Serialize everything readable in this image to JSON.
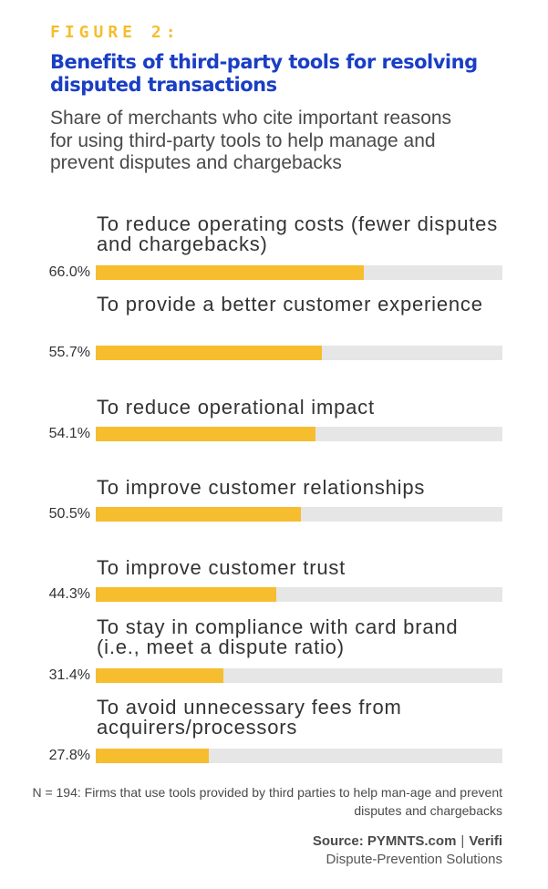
{
  "figure_label": "FIGURE 2:",
  "title": "Benefits of third-party tools for resolving disputed transactions",
  "subtitle": "Share of merchants who cite important reasons for using third-party tools to help manage and prevent disputes and chargebacks",
  "note": "N = 194: Firms that use tools provided by third parties to help man-age and prevent disputes and chargebacks",
  "source": {
    "prefix": "Source: PYMNTS.com",
    "separator": "|",
    "partner": "Verifi",
    "line2": "Dispute-Prevention Solutions"
  },
  "colors": {
    "accent": "#f6bd2e",
    "title": "#1a3ec4",
    "track": "#e6e6e6"
  },
  "chart_data": {
    "type": "bar",
    "orientation": "horizontal",
    "title": "Benefits of third-party tools for resolving disputed transactions",
    "xlabel": "",
    "ylabel": "",
    "xlim": [
      0,
      100
    ],
    "value_suffix": "%",
    "categories": [
      "To reduce operating costs (fewer disputes and chargebacks)",
      "To provide a better customer experience",
      "To reduce operational impact",
      "To improve customer relationships",
      "To improve customer trust",
      "To stay in compliance with card brand (i.e., meet a dispute ratio)",
      "To avoid unnecessary fees from acquirers/processors"
    ],
    "values": [
      66.0,
      55.7,
      54.1,
      50.5,
      44.3,
      31.4,
      27.8
    ],
    "value_labels": [
      "66.0%",
      "55.7%",
      "54.1%",
      "50.5%",
      "44.3%",
      "31.4%",
      "27.8%"
    ]
  }
}
